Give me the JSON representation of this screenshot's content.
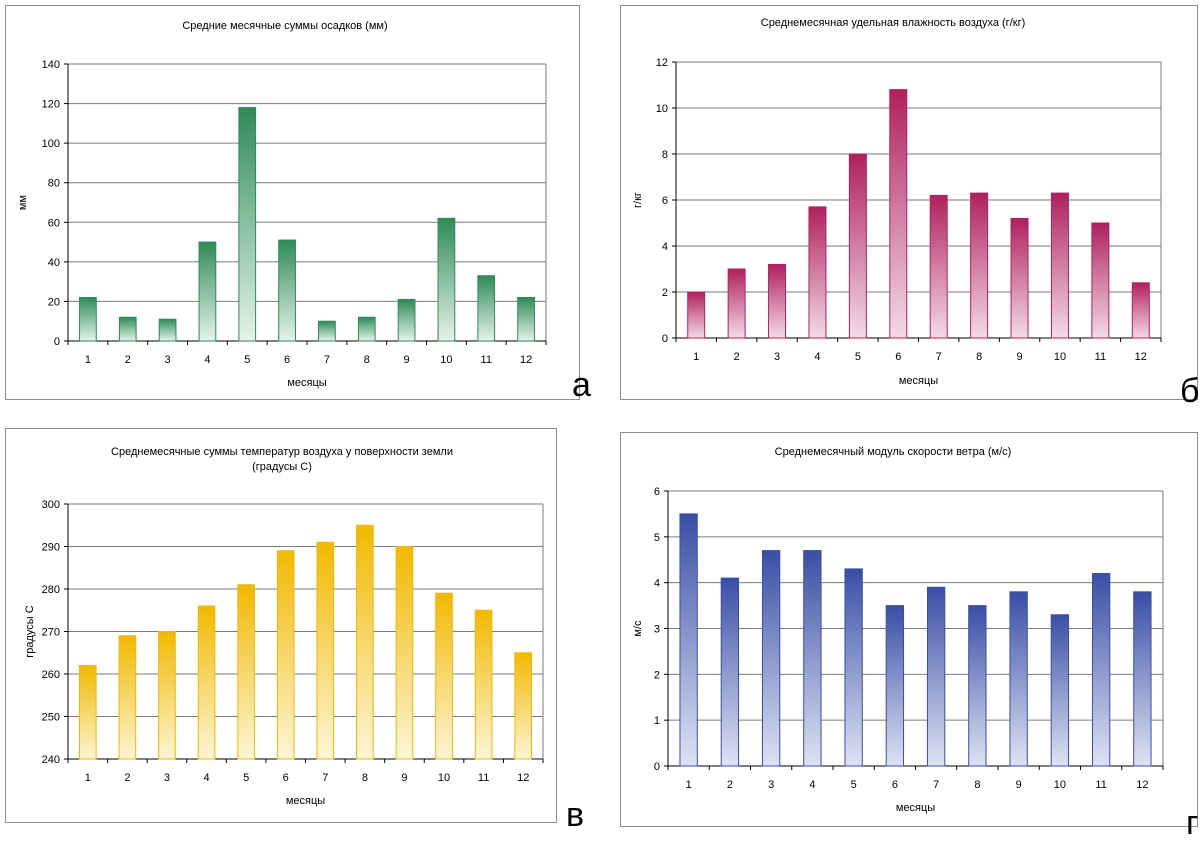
{
  "panel_letters": [
    "а",
    "б",
    "в",
    "г"
  ],
  "chart_data": [
    {
      "type": "bar",
      "title": "Средние месячные суммы осадков (мм)",
      "xlabel": "месяцы",
      "ylabel": "мм",
      "categories": [
        "1",
        "2",
        "3",
        "4",
        "5",
        "6",
        "7",
        "8",
        "9",
        "10",
        "11",
        "12"
      ],
      "values": [
        22,
        12,
        11,
        50,
        118,
        51,
        10,
        12,
        21,
        62,
        33,
        22
      ],
      "ylim": [
        0,
        140
      ],
      "yticks": [
        0,
        20,
        40,
        60,
        80,
        100,
        120,
        140
      ],
      "grid": true,
      "color": "#2e8b57",
      "fill_light": "#e6f3ea"
    },
    {
      "type": "bar",
      "title": "Среднемесячная удельная влажность воздуха (г/кг)",
      "xlabel": "месяцы",
      "ylabel": "г/кг",
      "categories": [
        "1",
        "2",
        "3",
        "4",
        "5",
        "6",
        "7",
        "8",
        "9",
        "10",
        "11",
        "12"
      ],
      "values": [
        2.0,
        3.0,
        3.2,
        5.7,
        8.0,
        10.8,
        6.2,
        6.3,
        5.2,
        6.3,
        5.0,
        2.4
      ],
      "ylim": [
        0,
        12
      ],
      "yticks": [
        0,
        2,
        4,
        6,
        8,
        10,
        12
      ],
      "grid": true,
      "color": "#b0205e",
      "fill_light": "#f3dbe6"
    },
    {
      "type": "bar",
      "title": "Среднемесячные суммы температур воздуха у поверхности земли (градусы С)",
      "title_lines": [
        "Среднемесячные суммы температур воздуха у поверхности земли",
        "(градусы С)"
      ],
      "xlabel": "месяцы",
      "ylabel": "градусы С",
      "categories": [
        "1",
        "2",
        "3",
        "4",
        "5",
        "6",
        "7",
        "8",
        "9",
        "10",
        "11",
        "12"
      ],
      "values": [
        262,
        269,
        270,
        276,
        281,
        289,
        291,
        295,
        290,
        279,
        275,
        265
      ],
      "ylim": [
        240,
        300
      ],
      "yticks": [
        240,
        250,
        260,
        270,
        280,
        290,
        300
      ],
      "grid": true,
      "color": "#f2b800",
      "fill_light": "#fdf5d6"
    },
    {
      "type": "bar",
      "title": "Среднемесячный модуль скорости ветра (м/с)",
      "xlabel": "месяцы",
      "ylabel": "м/с",
      "categories": [
        "1",
        "2",
        "3",
        "4",
        "5",
        "6",
        "7",
        "8",
        "9",
        "10",
        "11",
        "12"
      ],
      "values": [
        5.5,
        4.1,
        4.7,
        4.7,
        4.3,
        3.5,
        3.9,
        3.5,
        3.8,
        3.3,
        4.2,
        3.8
      ],
      "ylim": [
        0,
        6
      ],
      "yticks": [
        0,
        1,
        2,
        3,
        4,
        5,
        6
      ],
      "grid": true,
      "color": "#3a4ea6",
      "fill_light": "#dde3f3"
    }
  ]
}
